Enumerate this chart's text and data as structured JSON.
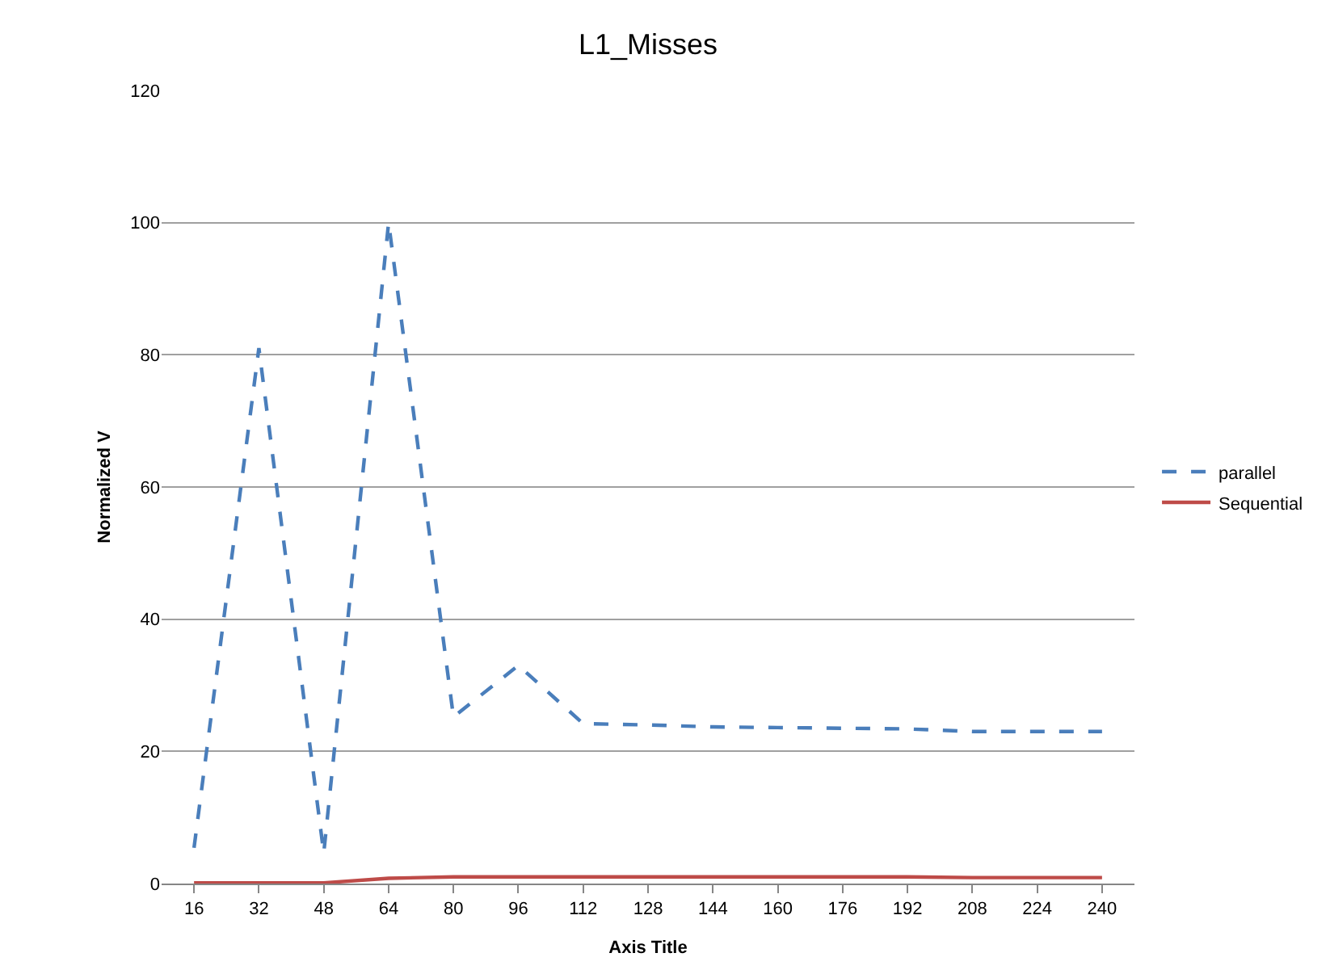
{
  "chart_data": {
    "type": "line",
    "title": "L1_Misses",
    "xlabel": "Axis Title",
    "ylabel": "Normalized V",
    "categories": [
      "16",
      "32",
      "48",
      "64",
      "80",
      "96",
      "112",
      "128",
      "144",
      "160",
      "176",
      "192",
      "208",
      "224",
      "240"
    ],
    "series": [
      {
        "name": "parallel",
        "color": "#4a7ebb",
        "line_style": "dashed",
        "values": [
          5.4,
          81,
          4.6,
          100,
          25.2,
          33,
          24.2,
          24,
          23.7,
          23.6,
          23.5,
          23.4,
          23,
          23,
          23
        ]
      },
      {
        "name": "Sequential",
        "color": "#be4b48",
        "line_style": "solid",
        "values": [
          0.1,
          0.1,
          0.1,
          0.8,
          1,
          1,
          1,
          1,
          1,
          1,
          1,
          1,
          0.9,
          0.9,
          0.9
        ]
      }
    ],
    "ylim": [
      0,
      120
    ],
    "yticks": [
      0,
      20,
      40,
      60,
      80,
      100,
      120
    ],
    "grid": "y",
    "legend": "right",
    "marker": "none"
  }
}
